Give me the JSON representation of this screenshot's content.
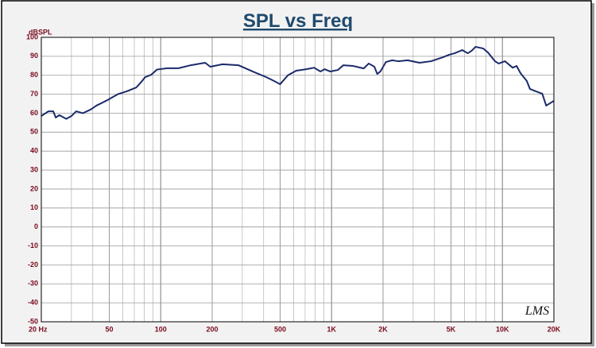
{
  "chart_data": {
    "type": "line",
    "title": "SPL vs Freq",
    "y_label": "dBSPL",
    "watermark": "LMS",
    "log_x": true,
    "grid": true,
    "xlim": [
      20,
      20000
    ],
    "ylim": [
      -50,
      100
    ],
    "xticks": [
      {
        "value": 20,
        "label": "20  Hz"
      },
      50,
      100,
      200,
      500,
      {
        "value": 1000,
        "label": "1K"
      },
      {
        "value": 2000,
        "label": "2K"
      },
      {
        "value": 5000,
        "label": "5K"
      },
      {
        "value": 10000,
        "label": "10K"
      },
      {
        "value": 20000,
        "label": "20K"
      }
    ],
    "yticks": [
      -50,
      -40,
      -30,
      -20,
      -10,
      0,
      10,
      20,
      30,
      40,
      50,
      60,
      70,
      80,
      90,
      100
    ],
    "x": [
      20,
      22,
      23.5,
      24.3,
      25.5,
      28,
      30,
      32,
      35,
      39,
      42,
      49,
      56,
      63,
      72,
      77,
      81,
      88,
      95,
      109,
      127,
      150,
      182,
      195,
      230,
      285,
      345,
      415,
      460,
      500,
      555,
      620,
      710,
      790,
      860,
      910,
      980,
      1090,
      1170,
      1340,
      1540,
      1650,
      1780,
      1850,
      1930,
      2080,
      2260,
      2460,
      2790,
      3270,
      3820,
      4480,
      4870,
      5240,
      5820,
      6260,
      6600,
      6960,
      7730,
      8230,
      9050,
      9500,
      10340,
      11480,
      12100,
      12760,
      13880,
      14480,
      15740,
      17100,
      18030,
      20000
    ],
    "series": [
      {
        "name": "SPL",
        "color": "#1b2a6b",
        "values": [
          58.5,
          61,
          61,
          57.7,
          59,
          57,
          58.5,
          61,
          60,
          62,
          64,
          67,
          70,
          71.5,
          73.6,
          76.5,
          79,
          80.3,
          83,
          83.7,
          83.7,
          85.3,
          86.6,
          84.5,
          85.8,
          85.3,
          82,
          79,
          77,
          75.3,
          80,
          82.4,
          83.2,
          84,
          82,
          83.2,
          82,
          82.8,
          85.3,
          84.9,
          83.6,
          86.2,
          84.5,
          80.7,
          82,
          87,
          87.9,
          87.4,
          87.9,
          86.6,
          87.4,
          89.5,
          90.8,
          91.6,
          93.3,
          91.6,
          92.9,
          95,
          94.1,
          92,
          87.4,
          86.2,
          87.4,
          84,
          84.9,
          81.1,
          77,
          72.8,
          71.5,
          70.3,
          64,
          66.5
        ]
      }
    ]
  }
}
